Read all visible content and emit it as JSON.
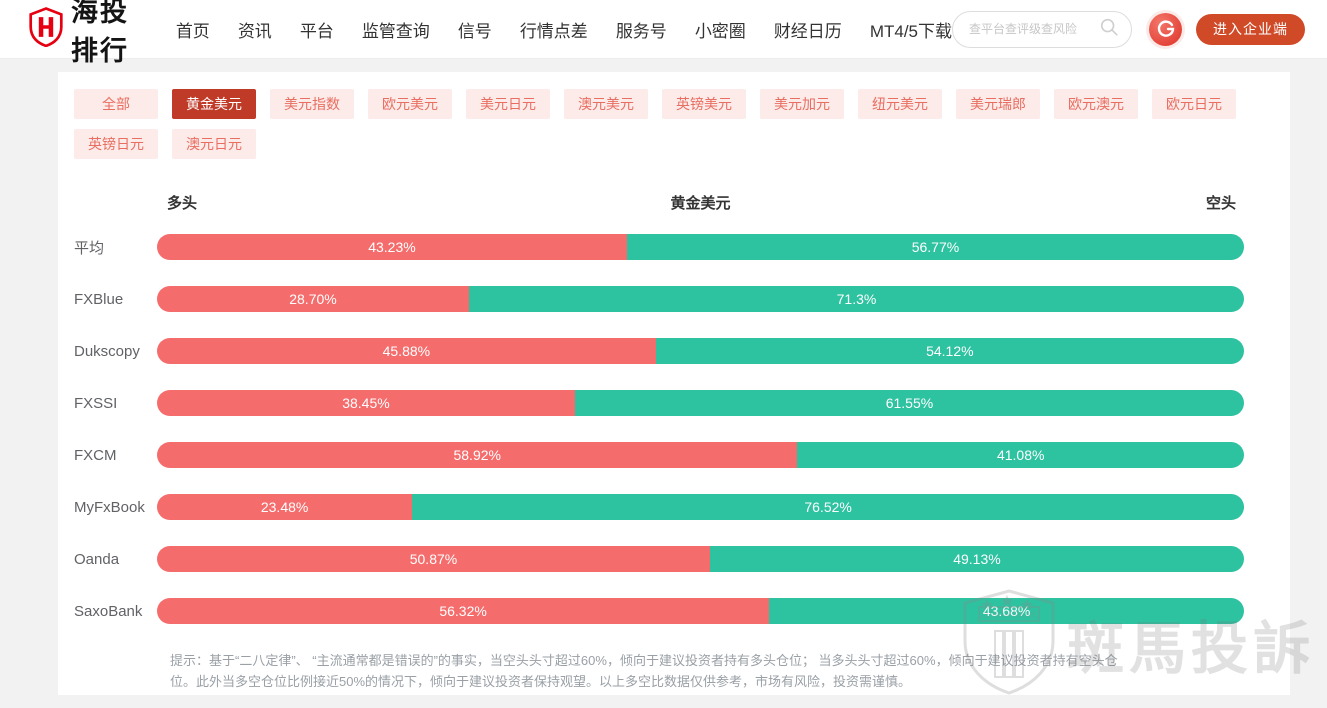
{
  "header": {
    "logo_text": "海投排行",
    "nav": [
      "首页",
      "资讯",
      "平台",
      "监管查询",
      "信号",
      "行情点差",
      "服务号",
      "小密圈",
      "财经日历",
      "MT4/5下载"
    ],
    "search_placeholder": "查平台查评级查风险",
    "enterprise_button": "进入企业端"
  },
  "filters": {
    "tabs": [
      "全部",
      "黄金美元",
      "美元指数",
      "欧元美元",
      "美元日元",
      "澳元美元",
      "英镑美元",
      "美元加元",
      "纽元美元",
      "美元瑞郎",
      "欧元澳元",
      "欧元日元",
      "英镑日元",
      "澳元日元"
    ],
    "active": "黄金美元"
  },
  "chart_data": {
    "type": "bar",
    "title": "黄金美元",
    "left_header": "多头",
    "right_header": "空头",
    "colors": {
      "long": "#f56c6c",
      "short": "#2dc2a0"
    },
    "categories": [
      "平均",
      "FXBlue",
      "Dukscopy",
      "FXSSI",
      "FXCM",
      "MyFxBook",
      "Oanda",
      "SaxoBank"
    ],
    "series": [
      {
        "name": "多头",
        "values": [
          43.23,
          28.7,
          45.88,
          38.45,
          58.92,
          23.48,
          50.87,
          56.32
        ]
      },
      {
        "name": "空头",
        "values": [
          56.77,
          71.3,
          54.12,
          61.55,
          41.08,
          76.52,
          49.13,
          43.68
        ]
      }
    ],
    "rows": [
      {
        "broker": "平均",
        "long": 43.23,
        "short": 56.77,
        "long_label": "43.23%",
        "short_label": "56.77%"
      },
      {
        "broker": "FXBlue",
        "long": 28.7,
        "short": 71.3,
        "long_label": "28.70%",
        "short_label": "71.3%"
      },
      {
        "broker": "Dukscopy",
        "long": 45.88,
        "short": 54.12,
        "long_label": "45.88%",
        "short_label": "54.12%"
      },
      {
        "broker": "FXSSI",
        "long": 38.45,
        "short": 61.55,
        "long_label": "38.45%",
        "short_label": "61.55%"
      },
      {
        "broker": "FXCM",
        "long": 58.92,
        "short": 41.08,
        "long_label": "58.92%",
        "short_label": "41.08%"
      },
      {
        "broker": "MyFxBook",
        "long": 23.48,
        "short": 76.52,
        "long_label": "23.48%",
        "short_label": "76.52%"
      },
      {
        "broker": "Oanda",
        "long": 50.87,
        "short": 49.13,
        "long_label": "50.87%",
        "short_label": "49.13%"
      },
      {
        "broker": "SaxoBank",
        "long": 56.32,
        "short": 43.68,
        "long_label": "56.32%",
        "short_label": "43.68%"
      }
    ]
  },
  "footnote": "提示：基于“二八定律”、 “主流通常都是错误的”的事实，当空头头寸超过60%，倾向于建议投资者持有多头仓位； 当多头头寸超过60%，倾向于建议投资者持有空头仓位。此外当多空仓位比例接近50%的情况下，倾向于建议投资者保持观望。以上多空比数据仅供参考，市场有风险，投资需谨慎。",
  "watermark": {
    "shield_label": "ZEBRA RANK",
    "text": "斑馬投訴"
  }
}
